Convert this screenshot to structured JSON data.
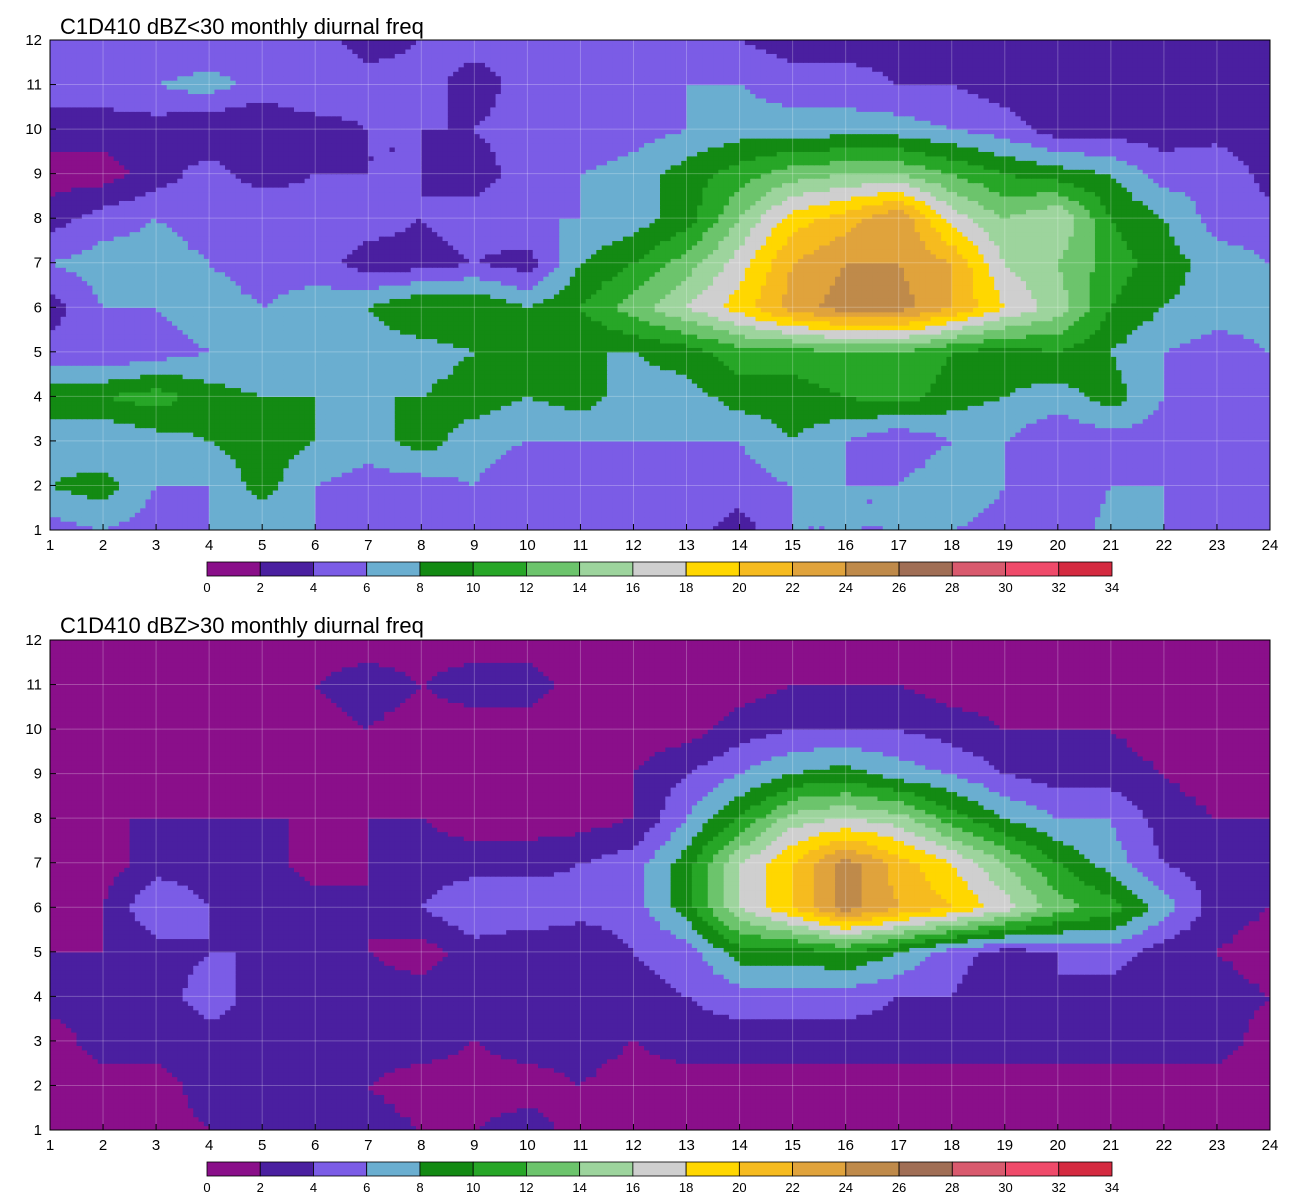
{
  "chart_data": [
    {
      "type": "contour",
      "title": "C1D410 dBZ<30 monthly diurnal freq",
      "xlabel": "",
      "ylabel": "",
      "xlim": [
        1,
        24
      ],
      "ylim": [
        1,
        12
      ],
      "x_ticks": [
        "1",
        "2",
        "3",
        "4",
        "5",
        "6",
        "7",
        "8",
        "9",
        "10",
        "11",
        "12",
        "13",
        "14",
        "15",
        "16",
        "17",
        "18",
        "19",
        "20",
        "21",
        "22",
        "23",
        "24"
      ],
      "y_ticks": [
        "1",
        "2",
        "3",
        "4",
        "5",
        "6",
        "7",
        "8",
        "9",
        "10",
        "11",
        "12"
      ],
      "colorbar_levels": [
        "0",
        "2",
        "4",
        "6",
        "8",
        "10",
        "12",
        "14",
        "16",
        "18",
        "20",
        "22",
        "24",
        "26",
        "28",
        "30",
        "32",
        "34"
      ],
      "colorbar_colors": [
        "#8a0f8a",
        "#4a1fa0",
        "#7b5ce6",
        "#6aaed0",
        "#138a13",
        "#27a627",
        "#6cc46c",
        "#9dd49d",
        "#cfcfcf",
        "#ffd700",
        "#f6bb1f",
        "#e0a33c",
        "#bf8a4a",
        "#a06e55",
        "#d95a6e",
        "#ef4a6a",
        "#d42a40"
      ],
      "x": [
        1,
        2,
        3,
        4,
        5,
        6,
        7,
        8,
        9,
        10,
        11,
        12,
        13,
        14,
        15,
        16,
        17,
        18,
        19,
        20,
        21,
        22,
        23,
        24
      ],
      "y": [
        1,
        2,
        3,
        4,
        5,
        6,
        7,
        8,
        9,
        10,
        11,
        12
      ],
      "z": [
        [
          5,
          6,
          5,
          6,
          6,
          6,
          5,
          6,
          6,
          5,
          6,
          6,
          5,
          3,
          6,
          6,
          6,
          6,
          5,
          4,
          7,
          6,
          5,
          5
        ],
        [
          8,
          9,
          6,
          6,
          9,
          6,
          5,
          5,
          6,
          4,
          5,
          6,
          5,
          5,
          6,
          6,
          6,
          8,
          6,
          4,
          6,
          6,
          5,
          5
        ],
        [
          7,
          6,
          7,
          8,
          9,
          8,
          7,
          9,
          7,
          6,
          6,
          6,
          6,
          6,
          8,
          6,
          4,
          6,
          6,
          4,
          5,
          5,
          5,
          5
        ],
        [
          9,
          10,
          11,
          9,
          8,
          8,
          8,
          8,
          9,
          8,
          9,
          7,
          7,
          9,
          9,
          10,
          11,
          9,
          8,
          7,
          9,
          6,
          5,
          5
        ],
        [
          5,
          4,
          5,
          6,
          6,
          6,
          7,
          7,
          8,
          9,
          8,
          8,
          9,
          11,
          11,
          12,
          12,
          10,
          9,
          10,
          8,
          6,
          5,
          6
        ],
        [
          3,
          6,
          6,
          7,
          6,
          7,
          8,
          10,
          10,
          8,
          10,
          13,
          16,
          19,
          23,
          25,
          25,
          22,
          18,
          15,
          10,
          8,
          7,
          7
        ],
        [
          6,
          7,
          7,
          6,
          5,
          5,
          3,
          3,
          4,
          3,
          8,
          10,
          13,
          17,
          22,
          24,
          24,
          22,
          16,
          14,
          11,
          9,
          7,
          6
        ],
        [
          3,
          5,
          6,
          5,
          6,
          5,
          5,
          4,
          5,
          6,
          6,
          7,
          9,
          14,
          19,
          21,
          24,
          17,
          14,
          16,
          10,
          8,
          5,
          5
        ],
        [
          1,
          1,
          3,
          5,
          3,
          4,
          4,
          4,
          3,
          5,
          6,
          7,
          9,
          11,
          13,
          14,
          14,
          12,
          10,
          9,
          8,
          5,
          6,
          3
        ],
        [
          3,
          3,
          3,
          2,
          2,
          3,
          4,
          4,
          4,
          5,
          4,
          5,
          6,
          7,
          7,
          7,
          7,
          6,
          5,
          3,
          3,
          3,
          3,
          2
        ],
        [
          5,
          5,
          6,
          7,
          5,
          6,
          5,
          5,
          3,
          5,
          5,
          5,
          6,
          6,
          5,
          5,
          4,
          4,
          3,
          3,
          2,
          2,
          3,
          2
        ],
        [
          4,
          4,
          4,
          4,
          5,
          5,
          3,
          4,
          5,
          4,
          5,
          4,
          4,
          4,
          3,
          3,
          3,
          3,
          2,
          2,
          2,
          3,
          2,
          2
        ]
      ]
    },
    {
      "type": "contour",
      "title": "C1D410 dBZ>30 monthly diurnal freq",
      "xlabel": "",
      "ylabel": "",
      "xlim": [
        1,
        24
      ],
      "ylim": [
        1,
        12
      ],
      "x_ticks": [
        "1",
        "2",
        "3",
        "4",
        "5",
        "6",
        "7",
        "8",
        "9",
        "10",
        "11",
        "12",
        "13",
        "14",
        "15",
        "16",
        "17",
        "18",
        "19",
        "20",
        "21",
        "22",
        "23",
        "24"
      ],
      "y_ticks": [
        "1",
        "2",
        "3",
        "4",
        "5",
        "6",
        "7",
        "8",
        "9",
        "10",
        "11",
        "12"
      ],
      "colorbar_levels": [
        "0",
        "2",
        "4",
        "6",
        "8",
        "10",
        "12",
        "14",
        "16",
        "18",
        "20",
        "22",
        "24",
        "26",
        "28",
        "30",
        "32",
        "34"
      ],
      "colorbar_colors": [
        "#8a0f8a",
        "#4a1fa0",
        "#7b5ce6",
        "#6aaed0",
        "#138a13",
        "#27a627",
        "#6cc46c",
        "#9dd49d",
        "#cfcfcf",
        "#ffd700",
        "#f6bb1f",
        "#e0a33c",
        "#bf8a4a",
        "#a06e55",
        "#d95a6e",
        "#ef4a6a",
        "#d42a40"
      ],
      "x": [
        1,
        2,
        3,
        4,
        5,
        6,
        7,
        8,
        9,
        10,
        11,
        12,
        13,
        14,
        15,
        16,
        17,
        18,
        19,
        20,
        21,
        22,
        23,
        24
      ],
      "y": [
        1,
        2,
        3,
        4,
        5,
        6,
        7,
        8,
        9,
        10,
        11,
        12
      ],
      "z": [
        [
          1,
          1,
          1,
          2,
          2,
          2,
          3,
          2,
          2,
          3,
          1,
          1,
          1,
          1,
          1,
          1,
          1,
          1,
          1,
          1,
          1,
          1,
          1,
          1
        ],
        [
          1,
          1,
          1,
          3,
          3,
          3,
          2,
          1,
          1,
          1,
          2,
          1,
          1,
          1,
          1,
          1,
          1,
          1,
          1,
          1,
          1,
          1,
          1,
          1
        ],
        [
          1,
          3,
          3,
          3,
          4,
          3,
          3,
          3,
          2,
          3,
          3,
          2,
          3,
          3,
          3,
          3,
          3,
          3,
          3,
          3,
          3,
          3,
          3,
          1
        ],
        [
          3,
          2,
          3,
          5,
          3,
          2,
          3,
          3,
          3,
          2,
          3,
          3,
          4,
          5,
          5,
          5,
          4,
          4,
          2,
          4,
          3,
          2,
          3,
          2
        ],
        [
          2,
          2,
          3,
          4,
          4,
          3,
          2,
          1,
          3,
          2,
          2,
          4,
          5,
          9,
          9,
          10,
          8,
          5,
          3,
          4,
          5,
          3,
          2,
          1
        ],
        [
          1,
          2,
          6,
          4,
          3,
          3,
          2,
          4,
          6,
          6,
          5,
          5,
          9,
          16,
          20,
          25,
          22,
          20,
          17,
          13,
          11,
          7,
          3,
          2
        ],
        [
          2,
          1,
          3,
          3,
          3,
          1,
          2,
          3,
          3,
          3,
          4,
          5,
          9,
          16,
          20,
          25,
          21,
          18,
          14,
          10,
          7,
          4,
          3,
          2
        ],
        [
          2,
          2,
          2,
          2,
          2,
          2,
          2,
          2,
          1,
          1,
          1,
          2,
          6,
          10,
          15,
          16,
          15,
          11,
          8,
          6,
          6,
          3,
          2,
          2
        ],
        [
          1,
          1,
          1,
          1,
          1,
          1,
          1,
          1,
          1,
          1,
          1,
          2,
          4,
          6,
          8,
          9,
          7,
          6,
          4,
          3,
          3,
          2,
          1,
          1
        ],
        [
          1,
          1,
          1,
          1,
          1,
          1,
          2,
          1,
          1,
          1,
          1,
          1,
          1,
          3,
          4,
          4,
          4,
          3,
          2,
          2,
          2,
          1,
          1,
          1
        ],
        [
          1,
          1,
          1,
          1,
          2,
          2,
          3,
          2,
          3,
          3,
          1,
          1,
          1,
          1,
          2,
          2,
          2,
          1,
          1,
          1,
          1,
          1,
          1,
          1
        ],
        [
          1,
          1,
          1,
          1,
          1,
          1,
          1,
          1,
          1,
          1,
          1,
          1,
          1,
          1,
          1,
          1,
          1,
          1,
          1,
          1,
          1,
          1,
          1,
          1
        ]
      ]
    }
  ]
}
